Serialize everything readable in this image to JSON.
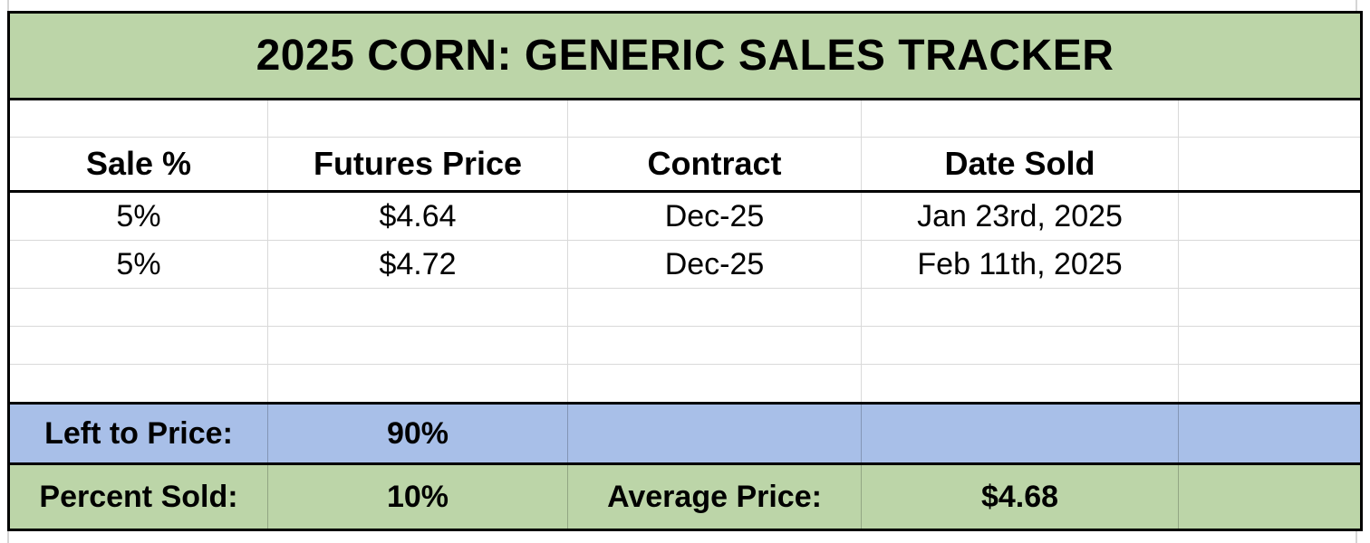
{
  "sheet": {
    "title": "2025 CORN: GENERIC SALES TRACKER",
    "columns": [
      "Sale %",
      "Futures Price",
      "Contract",
      "Date Sold",
      ""
    ],
    "rows": [
      [
        "5%",
        "$4.64",
        "Dec-25",
        "Jan 23rd, 2025",
        ""
      ],
      [
        "5%",
        "$4.72",
        "Dec-25",
        "Feb 11th, 2025",
        ""
      ]
    ],
    "summary": {
      "left_to_price_label": "Left to Price:",
      "left_to_price_value": "90%",
      "percent_sold_label": "Percent Sold:",
      "percent_sold_value": "10%",
      "average_price_label": "Average Price:",
      "average_price_value": "$4.68"
    },
    "colors": {
      "title_green": "#bcd5a8",
      "summary_blue": "#a8bfe8",
      "summary_green": "#bcd5a8",
      "gridline_gray": "#d9d9d9",
      "border_black": "#000000"
    }
  }
}
